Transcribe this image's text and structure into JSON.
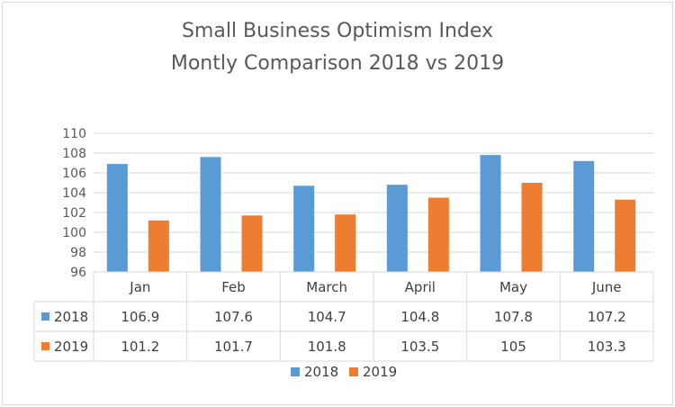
{
  "chart_data": {
    "type": "bar",
    "title": "Small Business Optimism Index",
    "subtitle": "Montly Comparison 2018 vs 2019",
    "categories": [
      "Jan",
      "Feb",
      "March",
      "April",
      "May",
      "June"
    ],
    "series": [
      {
        "name": "2018",
        "color": "#5b9bd5",
        "values": [
          106.9,
          107.6,
          104.7,
          104.8,
          107.8,
          107.2
        ]
      },
      {
        "name": "2019",
        "color": "#ed7d31",
        "values": [
          101.2,
          101.7,
          101.8,
          103.5,
          105,
          103.3
        ]
      }
    ],
    "table_values": [
      [
        "106.9",
        "107.6",
        "104.7",
        "104.8",
        "107.8",
        "107.2"
      ],
      [
        "101.2",
        "101.7",
        "101.8",
        "103.5",
        "105",
        "103.3"
      ]
    ],
    "ylim": [
      96,
      110
    ],
    "yticks": [
      "96",
      "98",
      "100",
      "102",
      "104",
      "106",
      "108",
      "110"
    ],
    "grid": true,
    "legend": "bottom"
  }
}
